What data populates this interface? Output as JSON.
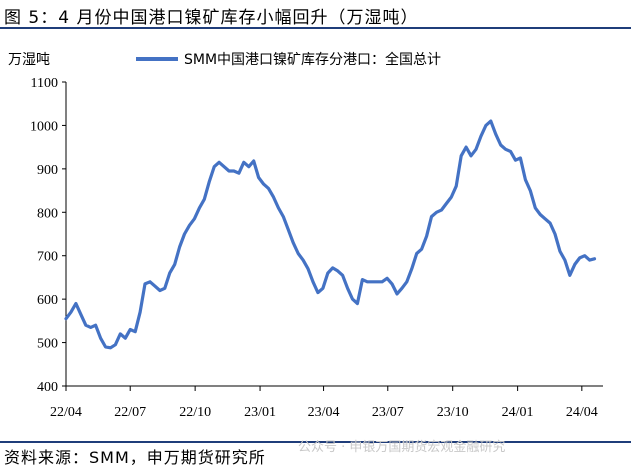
{
  "figure": {
    "title": "图 5：4 月份中国港口镍矿库存小幅回升（万湿吨）",
    "source": "资料来源：SMM，申万期货研究所",
    "watermark": "公众号 · 申银万国期货宏观金融研究"
  },
  "colors": {
    "line": "#4472c4",
    "rule": "#1f3d7a",
    "axis": "#000000"
  },
  "chart_data": {
    "type": "line",
    "title": "",
    "xlabel": "",
    "ylabel": "万湿吨",
    "ylim": [
      400,
      1100
    ],
    "yticks": [
      400,
      500,
      600,
      700,
      800,
      900,
      1000,
      1100
    ],
    "xlim": [
      "2022-04-01",
      "2024-05-01"
    ],
    "xticks": [
      {
        "date": "2022-04-01",
        "label": "22/04"
      },
      {
        "date": "2022-07-01",
        "label": "22/07"
      },
      {
        "date": "2022-10-01",
        "label": "22/10"
      },
      {
        "date": "2023-01-01",
        "label": "23/01"
      },
      {
        "date": "2023-04-01",
        "label": "23/04"
      },
      {
        "date": "2023-07-01",
        "label": "23/07"
      },
      {
        "date": "2023-10-01",
        "label": "23/10"
      },
      {
        "date": "2024-01-01",
        "label": "24/01"
      },
      {
        "date": "2024-04-01",
        "label": "24/04"
      }
    ],
    "grid": false,
    "legend_position": "top",
    "series": [
      {
        "name": "SMM中国港口镍矿库存分港口：全国总计",
        "points": [
          [
            "2022-04-01",
            555
          ],
          [
            "2022-04-08",
            570
          ],
          [
            "2022-04-15",
            590
          ],
          [
            "2022-04-22",
            565
          ],
          [
            "2022-04-29",
            540
          ],
          [
            "2022-05-06",
            535
          ],
          [
            "2022-05-13",
            540
          ],
          [
            "2022-05-20",
            510
          ],
          [
            "2022-05-27",
            490
          ],
          [
            "2022-06-03",
            488
          ],
          [
            "2022-06-10",
            495
          ],
          [
            "2022-06-17",
            520
          ],
          [
            "2022-06-24",
            510
          ],
          [
            "2022-07-01",
            530
          ],
          [
            "2022-07-08",
            525
          ],
          [
            "2022-07-15",
            570
          ],
          [
            "2022-07-22",
            635
          ],
          [
            "2022-07-29",
            640
          ],
          [
            "2022-08-05",
            630
          ],
          [
            "2022-08-12",
            620
          ],
          [
            "2022-08-19",
            625
          ],
          [
            "2022-08-26",
            660
          ],
          [
            "2022-09-02",
            680
          ],
          [
            "2022-09-09",
            720
          ],
          [
            "2022-09-16",
            750
          ],
          [
            "2022-09-23",
            770
          ],
          [
            "2022-09-30",
            785
          ],
          [
            "2022-10-07",
            810
          ],
          [
            "2022-10-14",
            830
          ],
          [
            "2022-10-21",
            870
          ],
          [
            "2022-10-28",
            905
          ],
          [
            "2022-11-04",
            915
          ],
          [
            "2022-11-11",
            905
          ],
          [
            "2022-11-18",
            895
          ],
          [
            "2022-11-25",
            895
          ],
          [
            "2022-12-02",
            890
          ],
          [
            "2022-12-09",
            915
          ],
          [
            "2022-12-16",
            905
          ],
          [
            "2022-12-23",
            918
          ],
          [
            "2022-12-30",
            880
          ],
          [
            "2023-01-06",
            865
          ],
          [
            "2023-01-13",
            855
          ],
          [
            "2023-01-20",
            835
          ],
          [
            "2023-01-27",
            810
          ],
          [
            "2023-02-03",
            790
          ],
          [
            "2023-02-10",
            760
          ],
          [
            "2023-02-17",
            730
          ],
          [
            "2023-02-24",
            705
          ],
          [
            "2023-03-03",
            690
          ],
          [
            "2023-03-10",
            670
          ],
          [
            "2023-03-17",
            640
          ],
          [
            "2023-03-24",
            615
          ],
          [
            "2023-03-31",
            625
          ],
          [
            "2023-04-07",
            660
          ],
          [
            "2023-04-14",
            672
          ],
          [
            "2023-04-21",
            665
          ],
          [
            "2023-04-28",
            655
          ],
          [
            "2023-05-05",
            625
          ],
          [
            "2023-05-12",
            600
          ],
          [
            "2023-05-19",
            590
          ],
          [
            "2023-05-26",
            645
          ],
          [
            "2023-06-02",
            640
          ],
          [
            "2023-06-09",
            640
          ],
          [
            "2023-06-16",
            640
          ],
          [
            "2023-06-23",
            640
          ],
          [
            "2023-06-30",
            648
          ],
          [
            "2023-07-07",
            635
          ],
          [
            "2023-07-14",
            612
          ],
          [
            "2023-07-21",
            625
          ],
          [
            "2023-07-28",
            640
          ],
          [
            "2023-08-04",
            670
          ],
          [
            "2023-08-11",
            705
          ],
          [
            "2023-08-18",
            715
          ],
          [
            "2023-08-25",
            745
          ],
          [
            "2023-09-01",
            790
          ],
          [
            "2023-09-08",
            800
          ],
          [
            "2023-09-15",
            805
          ],
          [
            "2023-09-22",
            820
          ],
          [
            "2023-09-29",
            835
          ],
          [
            "2023-10-06",
            860
          ],
          [
            "2023-10-13",
            930
          ],
          [
            "2023-10-20",
            950
          ],
          [
            "2023-10-27",
            930
          ],
          [
            "2023-11-03",
            945
          ],
          [
            "2023-11-10",
            975
          ],
          [
            "2023-11-17",
            1000
          ],
          [
            "2023-11-24",
            1010
          ],
          [
            "2023-12-01",
            980
          ],
          [
            "2023-12-08",
            955
          ],
          [
            "2023-12-15",
            945
          ],
          [
            "2023-12-22",
            940
          ],
          [
            "2023-12-29",
            920
          ],
          [
            "2024-01-05",
            925
          ],
          [
            "2024-01-12",
            875
          ],
          [
            "2024-01-19",
            850
          ],
          [
            "2024-01-26",
            810
          ],
          [
            "2024-02-02",
            795
          ],
          [
            "2024-02-09",
            785
          ],
          [
            "2024-02-16",
            775
          ],
          [
            "2024-02-23",
            750
          ],
          [
            "2024-03-01",
            710
          ],
          [
            "2024-03-08",
            690
          ],
          [
            "2024-03-15",
            655
          ],
          [
            "2024-03-22",
            680
          ],
          [
            "2024-03-29",
            695
          ],
          [
            "2024-04-05",
            700
          ],
          [
            "2024-04-12",
            690
          ],
          [
            "2024-04-19",
            693
          ]
        ]
      }
    ]
  }
}
